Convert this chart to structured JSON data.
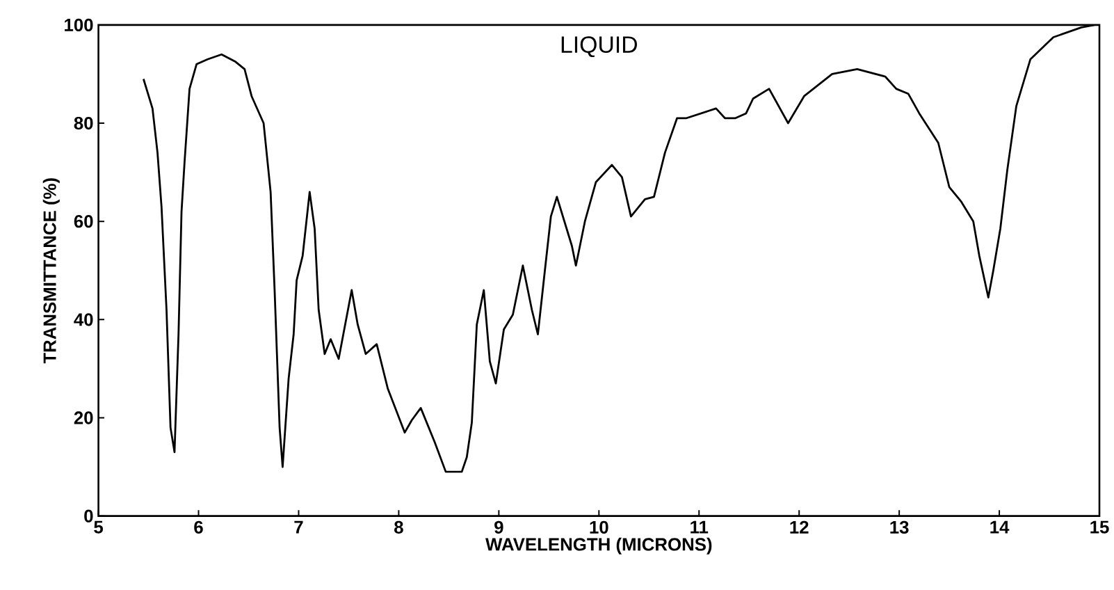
{
  "chart_data": {
    "type": "line",
    "title": "LIQUID",
    "xlabel": "WAVELENGTH (MICRONS)",
    "ylabel": "TRANSMITTANCE (%)",
    "xlim": [
      5,
      15
    ],
    "ylim": [
      0,
      100
    ],
    "xticks": [
      5,
      6,
      7,
      8,
      9,
      10,
      11,
      12,
      13,
      14,
      15
    ],
    "yticks": [
      0,
      20,
      40,
      60,
      80,
      100
    ],
    "grid": false,
    "marker": "none",
    "line_style": "solid",
    "series": [
      {
        "color": "#000000",
        "x": [
          5.45,
          5.54,
          5.59,
          5.63,
          5.68,
          5.72,
          5.76,
          5.8,
          5.83,
          5.86,
          5.91,
          5.98,
          6.09,
          6.23,
          6.37,
          6.46,
          6.53,
          6.65,
          6.72,
          6.76,
          6.81,
          6.84,
          6.9,
          6.95,
          6.98,
          7.04,
          7.11,
          7.16,
          7.2,
          7.26,
          7.32,
          7.4,
          7.53,
          7.59,
          7.67,
          7.78,
          7.89,
          8.06,
          8.13,
          8.22,
          8.36,
          8.47,
          8.63,
          8.68,
          8.73,
          8.78,
          8.85,
          8.91,
          8.97,
          9.05,
          9.14,
          9.24,
          9.33,
          9.39,
          9.46,
          9.52,
          9.58,
          9.67,
          9.73,
          9.77,
          9.86,
          9.97,
          10.13,
          10.23,
          10.32,
          10.46,
          10.55,
          10.66,
          10.78,
          10.87,
          11.17,
          11.26,
          11.36,
          11.47,
          11.54,
          11.7,
          11.89,
          12.05,
          12.33,
          12.58,
          12.86,
          12.97,
          13.09,
          13.2,
          13.39,
          13.5,
          13.62,
          13.74,
          13.8,
          13.89,
          13.94,
          14.01,
          14.08,
          14.17,
          14.31,
          14.54,
          14.82,
          14.95
        ],
        "values": [
          89,
          83,
          74,
          63,
          42,
          18,
          13,
          37,
          62,
          72,
          87,
          92,
          93,
          94,
          92.5,
          91,
          85.5,
          80,
          66,
          46,
          18,
          10,
          28,
          37,
          48,
          53,
          66,
          58.5,
          42,
          33,
          36,
          32,
          46,
          39,
          33,
          35,
          26,
          17,
          19.5,
          22,
          15,
          9,
          9,
          12,
          19,
          39,
          46,
          31.5,
          27,
          38,
          41,
          51,
          42,
          37,
          50,
          61,
          65,
          59,
          55,
          51,
          60,
          68,
          71.5,
          69,
          61,
          64.5,
          65,
          74,
          81,
          81,
          83,
          81,
          81,
          82,
          85,
          87,
          80,
          85.5,
          90,
          91,
          89.5,
          87,
          86,
          82,
          76,
          67,
          64,
          60,
          53,
          44.5,
          50,
          58.5,
          70.5,
          83.5,
          93,
          97.5,
          99.5,
          100
        ]
      }
    ]
  }
}
